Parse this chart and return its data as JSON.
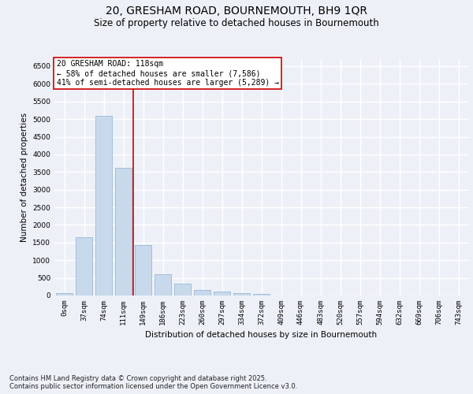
{
  "title1": "20, GRESHAM ROAD, BOURNEMOUTH, BH9 1QR",
  "title2": "Size of property relative to detached houses in Bournemouth",
  "xlabel": "Distribution of detached houses by size in Bournemouth",
  "ylabel": "Number of detached properties",
  "bar_color": "#c9d9ec",
  "bar_edge_color": "#8ab0d4",
  "categories": [
    "0sqm",
    "37sqm",
    "74sqm",
    "111sqm",
    "149sqm",
    "186sqm",
    "223sqm",
    "260sqm",
    "297sqm",
    "334sqm",
    "372sqm",
    "409sqm",
    "446sqm",
    "483sqm",
    "520sqm",
    "557sqm",
    "594sqm",
    "632sqm",
    "669sqm",
    "706sqm",
    "743sqm"
  ],
  "values": [
    60,
    1650,
    5100,
    3620,
    1430,
    600,
    330,
    165,
    120,
    65,
    50,
    5,
    0,
    0,
    0,
    0,
    0,
    0,
    0,
    0,
    0
  ],
  "annotation_text": "20 GRESHAM ROAD: 118sqm\n← 58% of detached houses are smaller (7,586)\n41% of semi-detached houses are larger (5,289) →",
  "annotation_box_color": "#ffffff",
  "annotation_border_color": "#cc0000",
  "vline_color": "#cc0000",
  "vline_x_index": 3.5,
  "ylim": [
    0,
    6700
  ],
  "yticks": [
    0,
    500,
    1000,
    1500,
    2000,
    2500,
    3000,
    3500,
    4000,
    4500,
    5000,
    5500,
    6000,
    6500
  ],
  "footnote": "Contains HM Land Registry data © Crown copyright and database right 2025.\nContains public sector information licensed under the Open Government Licence v3.0.",
  "bg_color": "#edf1f7",
  "grid_color": "#ffffff",
  "title_fontsize": 10,
  "subtitle_fontsize": 8.5,
  "axis_label_fontsize": 7.5,
  "tick_fontsize": 6.5,
  "annotation_fontsize": 7,
  "footnote_fontsize": 6
}
